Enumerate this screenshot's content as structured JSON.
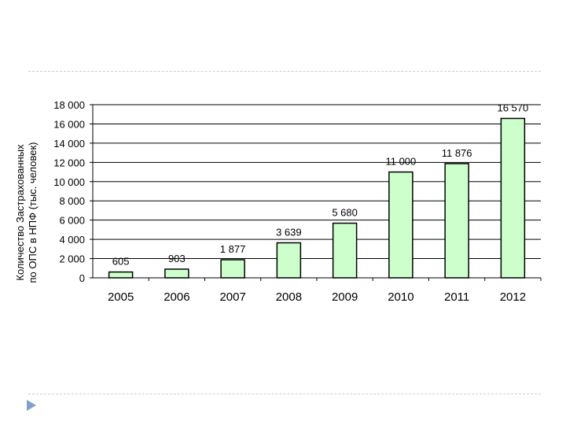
{
  "chart_data": {
    "type": "bar",
    "title": "",
    "xlabel": "",
    "ylabel": "Количество Застрахованных по ОПС в НПФ (тыс. человек)",
    "categories": [
      "2005",
      "2006",
      "2007",
      "2008",
      "2009",
      "2010",
      "2011",
      "2012"
    ],
    "values": [
      605,
      903,
      1877,
      3639,
      5680,
      11000,
      11876,
      16570
    ],
    "value_labels": [
      "605",
      "903",
      "1 877",
      "3 639",
      "5 680",
      "11 000",
      "11 876",
      "16 570"
    ],
    "ylim": [
      0,
      18000
    ],
    "yticks": [
      0,
      2000,
      4000,
      6000,
      8000,
      10000,
      12000,
      14000,
      16000,
      18000
    ],
    "ytick_labels": [
      "0",
      "2 000",
      "4 000",
      "6 000",
      "8 000",
      "10 000",
      "12 000",
      "14 000",
      "16 000",
      "18 000"
    ],
    "grid": true,
    "legend": "none",
    "colors": {
      "bar_fill": "#ccffcc",
      "bar_stroke": "#000000",
      "grid": "#000000"
    }
  },
  "slide": {
    "nav_icon": "triangle-right-icon",
    "accent": "#7fa1c9"
  }
}
